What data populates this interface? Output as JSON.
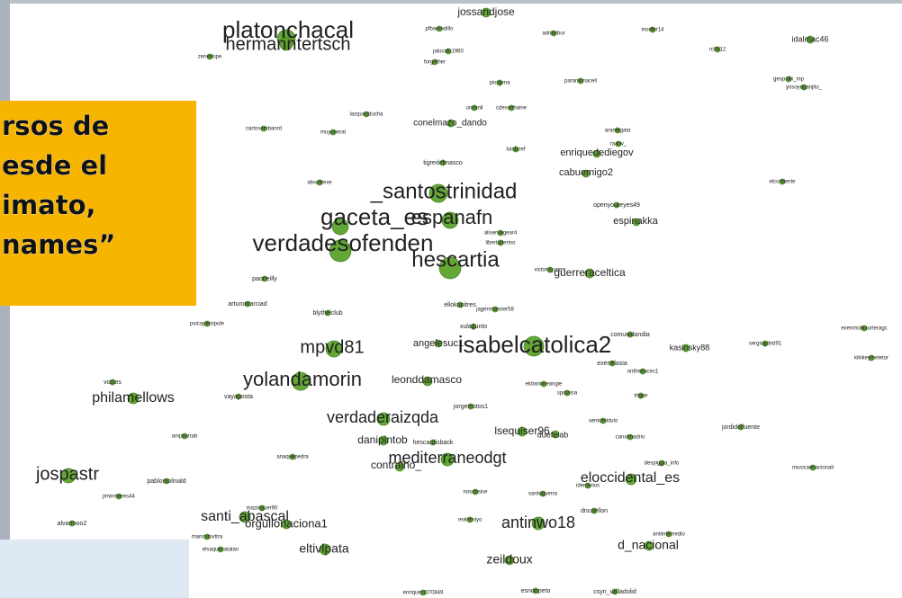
{
  "callout": {
    "lines": [
      "rsos de",
      "esde el",
      "imato,",
      "names”"
    ]
  },
  "nodes": [
    {
      "label": "platonchacal"
    },
    {
      "label": "hermanntertsch"
    },
    {
      "label": "_santostrinidad"
    },
    {
      "label": "gaceta_es"
    },
    {
      "label": "espanafn"
    },
    {
      "label": "verdadesofenden"
    },
    {
      "label": "hescartia"
    },
    {
      "label": "isabelcatolica2"
    },
    {
      "label": "mpvd81"
    },
    {
      "label": "yolandamorin"
    },
    {
      "label": "verdaderaizqda"
    },
    {
      "label": "philamellows"
    },
    {
      "label": "jospastr"
    },
    {
      "label": "mediterraneodgt"
    },
    {
      "label": "eloccidental_es"
    },
    {
      "label": "antinwo18"
    },
    {
      "label": "santi_abascal"
    },
    {
      "label": "orgullonaciona1"
    },
    {
      "label": "eltivlpata"
    },
    {
      "label": "zeildoux"
    },
    {
      "label": "d_nacional"
    },
    {
      "label": "jossandjose"
    },
    {
      "label": "conelmazo_dando"
    },
    {
      "label": "enriquedediegov"
    },
    {
      "label": "cabuemigo2"
    },
    {
      "label": "espinakka"
    },
    {
      "label": "guerreraceltica"
    },
    {
      "label": "kasinsky88"
    },
    {
      "label": "leonddamasco"
    },
    {
      "label": "danipintob"
    },
    {
      "label": "contralho_"
    },
    {
      "label": "lsequiser96"
    },
    {
      "label": "duefelab"
    },
    {
      "label": "angelesuc1"
    },
    {
      "label": "hescardisback"
    },
    {
      "label": "pfbaeradillo"
    },
    {
      "label": "jalocolo1960"
    },
    {
      "label": "forgether"
    },
    {
      "label": "zenedope"
    },
    {
      "label": "adrianbur"
    },
    {
      "label": "inoriter14"
    },
    {
      "label": "rc0812"
    },
    {
      "label": "idalmac46"
    },
    {
      "label": "geopolik_mp"
    },
    {
      "label": "yosoynganjito_"
    },
    {
      "label": "paramonacell"
    },
    {
      "label": "pioupma"
    },
    {
      "label": "unosnil"
    },
    {
      "label": "cdesonhaine"
    },
    {
      "label": "lazquezducha"
    },
    {
      "label": "arantegata"
    },
    {
      "label": "raanv_"
    },
    {
      "label": "cartosembanrd"
    },
    {
      "label": "muyoneral"
    },
    {
      "label": "luistaref"
    },
    {
      "label": "tigredelmasco"
    },
    {
      "label": "absolttexe"
    },
    {
      "label": "elcontiente"
    },
    {
      "label": "openyoureyes49"
    },
    {
      "label": "aliseruegear4"
    },
    {
      "label": "libertaderino"
    },
    {
      "label": "victoruguerre"
    },
    {
      "label": "paoneilly"
    },
    {
      "label": "arturomarciad"
    },
    {
      "label": "blythelclub"
    },
    {
      "label": "ellokopitres"
    },
    {
      "label": "jagermonster58"
    },
    {
      "label": "psicopatsipole"
    },
    {
      "label": "xulagunto"
    },
    {
      "label": "comunidandia"
    },
    {
      "label": "sergiogdrid91"
    },
    {
      "label": "exenmobiaurteragc"
    },
    {
      "label": "exenelasia"
    },
    {
      "label": "onthetraces1"
    },
    {
      "label": "kikikeymeletor"
    },
    {
      "label": "vocies"
    },
    {
      "label": "vayaposta"
    },
    {
      "label": "eldiarioneangie"
    },
    {
      "label": "spotaisa"
    },
    {
      "label": "trigue"
    },
    {
      "label": "jorgemstos1"
    },
    {
      "label": "sentomktulo"
    },
    {
      "label": "ampeatrab"
    },
    {
      "label": "canalmadrio"
    },
    {
      "label": "jordidelfuente"
    },
    {
      "label": "anaquepedra"
    },
    {
      "label": "despiggia_info"
    },
    {
      "label": "musicaenacionali"
    },
    {
      "label": "pablomolinald"
    },
    {
      "label": "jiminmeres44"
    },
    {
      "label": "nosobsise"
    },
    {
      "label": "santoguerra"
    },
    {
      "label": "identarios"
    },
    {
      "label": "mazinguer90"
    },
    {
      "label": "alvarmoo2"
    },
    {
      "label": "manostsvttra"
    },
    {
      "label": "elsaquecatalan"
    },
    {
      "label": "antiintemedio"
    },
    {
      "label": "enriquest370849"
    },
    {
      "label": "esnoopeto"
    },
    {
      "label": "csyn_valladolid"
    },
    {
      "label": "realmisiyo"
    },
    {
      "label": "dncoellon"
    }
  ]
}
